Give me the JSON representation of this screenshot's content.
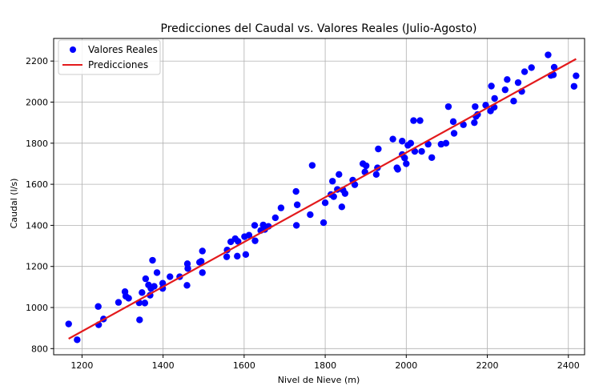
{
  "chart_data": {
    "type": "scatter",
    "title": "Predicciones del Caudal vs. Valores Reales (Julio-Agosto)",
    "xlabel": "Nivel de Nieve (m)",
    "ylabel": "Caudal (l/s)",
    "xlim": [
      1130,
      2440
    ],
    "ylim": [
      770,
      2310
    ],
    "xticks": [
      1200,
      1400,
      1600,
      1800,
      2000,
      2200,
      2400
    ],
    "yticks": [
      800,
      1000,
      1200,
      1400,
      1600,
      1800,
      2000,
      2200
    ],
    "grid": true,
    "legend_position": "top-left",
    "series": [
      {
        "name": "Valores Reales",
        "kind": "scatter",
        "color": "#0000ff",
        "points": [
          [
            1167,
            920
          ],
          [
            1188,
            843
          ],
          [
            1240,
            1005
          ],
          [
            1241,
            916
          ],
          [
            1253,
            944
          ],
          [
            1290,
            1025
          ],
          [
            1306,
            1077
          ],
          [
            1308,
            1055
          ],
          [
            1315,
            1045
          ],
          [
            1341,
            1023
          ],
          [
            1342,
            940
          ],
          [
            1348,
            1073
          ],
          [
            1355,
            1022
          ],
          [
            1357,
            1140
          ],
          [
            1364,
            1110
          ],
          [
            1368,
            1060
          ],
          [
            1370,
            1093
          ],
          [
            1374,
            1230
          ],
          [
            1378,
            1103
          ],
          [
            1385,
            1170
          ],
          [
            1399,
            1118
          ],
          [
            1399,
            1093
          ],
          [
            1417,
            1150
          ],
          [
            1441,
            1150
          ],
          [
            1459,
            1108
          ],
          [
            1460,
            1213
          ],
          [
            1461,
            1190
          ],
          [
            1490,
            1220
          ],
          [
            1494,
            1225
          ],
          [
            1497,
            1275
          ],
          [
            1497,
            1170
          ],
          [
            1557,
            1247
          ],
          [
            1558,
            1280
          ],
          [
            1567,
            1320
          ],
          [
            1578,
            1335
          ],
          [
            1583,
            1250
          ],
          [
            1585,
            1322
          ],
          [
            1601,
            1345
          ],
          [
            1604,
            1258
          ],
          [
            1612,
            1352
          ],
          [
            1626,
            1400
          ],
          [
            1627,
            1325
          ],
          [
            1641,
            1375
          ],
          [
            1647,
            1402
          ],
          [
            1651,
            1380
          ],
          [
            1660,
            1395
          ],
          [
            1677,
            1437
          ],
          [
            1691,
            1485
          ],
          [
            1728,
            1565
          ],
          [
            1729,
            1400
          ],
          [
            1731,
            1500
          ],
          [
            1763,
            1452
          ],
          [
            1768,
            1692
          ],
          [
            1796,
            1413
          ],
          [
            1800,
            1510
          ],
          [
            1814,
            1550
          ],
          [
            1818,
            1615
          ],
          [
            1821,
            1540
          ],
          [
            1830,
            1575
          ],
          [
            1834,
            1648
          ],
          [
            1841,
            1490
          ],
          [
            1844,
            1572
          ],
          [
            1849,
            1555
          ],
          [
            1868,
            1620
          ],
          [
            1873,
            1598
          ],
          [
            1893,
            1700
          ],
          [
            1898,
            1660
          ],
          [
            1901,
            1690
          ],
          [
            1926,
            1648
          ],
          [
            1929,
            1680
          ],
          [
            1931,
            1772
          ],
          [
            1967,
            1820
          ],
          [
            1977,
            1680
          ],
          [
            1979,
            1673
          ],
          [
            1990,
            1810
          ],
          [
            1990,
            1745
          ],
          [
            1996,
            1728
          ],
          [
            2000,
            1700
          ],
          [
            2004,
            1790
          ],
          [
            2011,
            1800
          ],
          [
            2018,
            1910
          ],
          [
            2021,
            1760
          ],
          [
            2034,
            1910
          ],
          [
            2038,
            1760
          ],
          [
            2054,
            1795
          ],
          [
            2063,
            1730
          ],
          [
            2086,
            1795
          ],
          [
            2098,
            1800
          ],
          [
            2104,
            1978
          ],
          [
            2116,
            1905
          ],
          [
            2118,
            1848
          ],
          [
            2141,
            1890
          ],
          [
            2168,
            1900
          ],
          [
            2170,
            1978
          ],
          [
            2172,
            1930
          ],
          [
            2176,
            1940
          ],
          [
            2196,
            1985
          ],
          [
            2208,
            1957
          ],
          [
            2210,
            2078
          ],
          [
            2217,
            1975
          ],
          [
            2218,
            2018
          ],
          [
            2244,
            2060
          ],
          [
            2249,
            2110
          ],
          [
            2265,
            2005
          ],
          [
            2276,
            2095
          ],
          [
            2285,
            2052
          ],
          [
            2292,
            2148
          ],
          [
            2309,
            2168
          ],
          [
            2350,
            2230
          ],
          [
            2357,
            2130
          ],
          [
            2363,
            2133
          ],
          [
            2365,
            2170
          ],
          [
            2414,
            2077
          ],
          [
            2419,
            2128
          ]
        ]
      },
      {
        "name": "Predicciones",
        "kind": "line",
        "color": "#e31a1c",
        "points": [
          [
            1167,
            848
          ],
          [
            2419,
            2210
          ]
        ]
      }
    ]
  }
}
